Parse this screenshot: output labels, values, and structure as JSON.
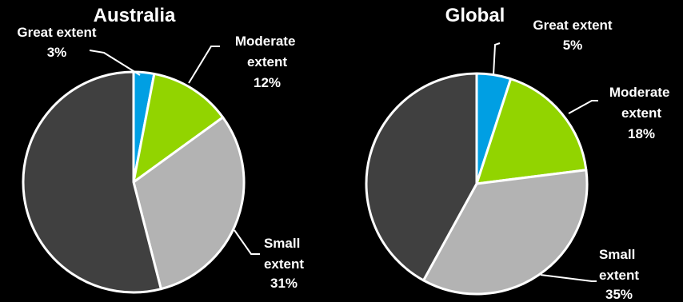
{
  "colors": {
    "background": "#000000",
    "text": "#ffffff",
    "slice_outline": "#ffffff",
    "great_extent": "#009fe3",
    "moderate_extent": "#92d400",
    "small_extent": "#b3b3b3",
    "remainder": "#404040"
  },
  "chart_data": [
    {
      "type": "pie",
      "title": "Australia",
      "start": "12 o'clock",
      "direction": "clockwise",
      "slices": [
        {
          "label": "Great extent",
          "value": 3,
          "value_label": "3%",
          "color": "#009fe3"
        },
        {
          "label": "Moderate extent",
          "value": 12,
          "value_label": "12%",
          "color": "#92d400"
        },
        {
          "label": "Small extent",
          "value": 31,
          "value_label": "31%",
          "color": "#b3b3b3"
        },
        {
          "label": "",
          "value": 54,
          "value_label": "",
          "color": "#404040"
        }
      ]
    },
    {
      "type": "pie",
      "title": "Global",
      "start": "12 o'clock",
      "direction": "clockwise",
      "slices": [
        {
          "label": "Great extent",
          "value": 5,
          "value_label": "5%",
          "color": "#009fe3"
        },
        {
          "label": "Moderate extent",
          "value": 18,
          "value_label": "18%",
          "color": "#92d400"
        },
        {
          "label": "Small extent",
          "value": 35,
          "value_label": "35%",
          "color": "#b3b3b3"
        },
        {
          "label": "",
          "value": 42,
          "value_label": "",
          "color": "#404040"
        }
      ]
    }
  ]
}
